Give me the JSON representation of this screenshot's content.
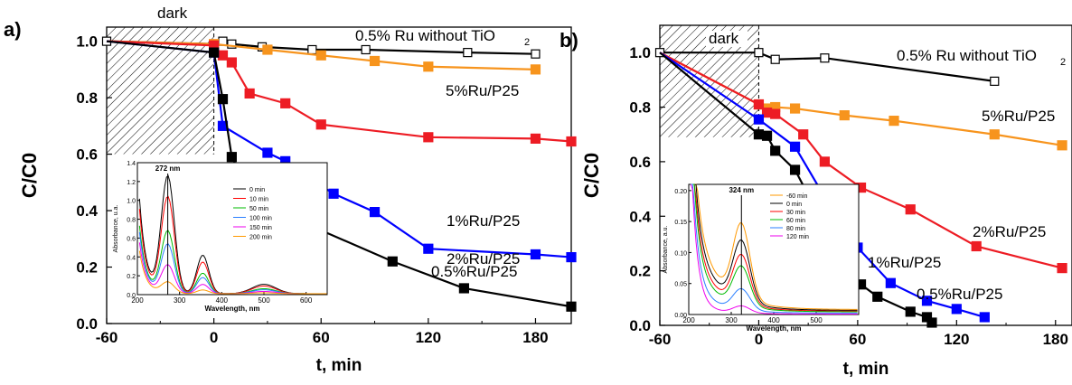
{
  "figure": {
    "panels": [
      {
        "label": "a)"
      },
      {
        "label": "b)"
      }
    ]
  },
  "chart_data": [
    {
      "type": "line",
      "panel": "a)",
      "xlabel": "t, min",
      "ylabel": "C/C0",
      "xlim": [
        -60,
        200
      ],
      "ylim": [
        0.0,
        1.05
      ],
      "xticks": [
        -60,
        0,
        60,
        120,
        180
      ],
      "yticks": [
        0.0,
        0.2,
        0.4,
        0.6,
        0.8,
        1.0
      ],
      "xtick_labels": [
        "-60",
        "0",
        "60",
        "120",
        "180"
      ],
      "ytick_labels": [
        "0.0",
        "0.2",
        "0.4",
        "0.6",
        "0.8",
        "1.0"
      ],
      "shaded_region": {
        "label": "dark",
        "x": [
          -60,
          0
        ]
      },
      "series": [
        {
          "name": "0.5% Ru without TiO2",
          "color": "#000000",
          "marker": "open-square",
          "x": [
            -60,
            0,
            5,
            10,
            27,
            55,
            85,
            142,
            180
          ],
          "y": [
            1.0,
            0.99,
            1.0,
            0.99,
            0.98,
            0.97,
            0.97,
            0.96,
            0.955
          ]
        },
        {
          "name": "5%Ru/P25",
          "color": "#f7941d",
          "marker": "filled-square",
          "x": [
            -60,
            0,
            30,
            60,
            90,
            120,
            180
          ],
          "y": [
            1.0,
            0.99,
            0.97,
            0.95,
            0.93,
            0.91,
            0.9
          ]
        },
        {
          "name": "2%Ru/P25",
          "color": "#ed1c24",
          "marker": "filled-square",
          "x": [
            -60,
            0,
            5,
            10,
            20,
            40,
            60,
            120,
            180,
            200
          ],
          "y": [
            1.0,
            0.985,
            0.95,
            0.925,
            0.815,
            0.78,
            0.705,
            0.66,
            0.655,
            0.645
          ]
        },
        {
          "name": "1%Ru/P25",
          "color": "#0000ff",
          "marker": "filled-square",
          "x": [
            -60,
            0,
            5,
            30,
            40,
            52,
            67,
            90,
            120,
            180,
            200
          ],
          "y": [
            1.0,
            0.96,
            0.7,
            0.605,
            0.575,
            0.52,
            0.46,
            0.395,
            0.265,
            0.245,
            0.235
          ]
        },
        {
          "name": "0.5%Ru/P25",
          "color": "#000000",
          "marker": "filled-square",
          "x": [
            -60,
            0,
            5,
            10,
            15,
            20,
            30,
            40,
            50,
            60,
            100,
            140,
            200
          ],
          "y": [
            1.0,
            0.96,
            0.795,
            0.59,
            0.53,
            0.48,
            0.425,
            0.385,
            0.345,
            0.33,
            0.22,
            0.125,
            0.06
          ]
        }
      ],
      "series_labels": [
        "0.5% Ru without TiO",
        "2",
        "5%Ru/P25",
        "2%Ru/P25",
        "1%Ru/P25",
        "0.5%Ru/P25"
      ],
      "inset": {
        "xlabel": "Wavelength, nm",
        "ylabel": "Absorbance, u.a.",
        "xlim": [
          200,
          650
        ],
        "ylim": [
          0,
          1.4
        ],
        "xticks": [
          "200",
          "300",
          "400",
          "500",
          "600"
        ],
        "yticks": [
          "0.0",
          "0.2",
          "0.4",
          "0.6",
          "0.8",
          "1.0",
          "1.2",
          "1.4"
        ],
        "peak_label": "272 nm",
        "peak_x": 272,
        "legend": [
          "0 min",
          "10 min",
          "50 min",
          "100 min",
          "150 min",
          "200 min"
        ],
        "colors": [
          "#000000",
          "#ff0000",
          "#00bb00",
          "#2a7fff",
          "#ee00ee",
          "#ff9900"
        ],
        "peak_heights": [
          1.24,
          1.02,
          0.66,
          0.52,
          0.3,
          0.12
        ]
      }
    },
    {
      "type": "line",
      "panel": "b)",
      "xlabel": "t, min",
      "ylabel": "C/C0",
      "xlim": [
        -60,
        190
      ],
      "ylim": [
        0.0,
        1.1
      ],
      "xticks": [
        -60,
        0,
        60,
        120,
        180
      ],
      "yticks": [
        0.0,
        0.2,
        0.4,
        0.6,
        0.8,
        1.0
      ],
      "xtick_labels": [
        "-60",
        "0",
        "60",
        "120",
        "180"
      ],
      "ytick_labels": [
        "0.0",
        "0.2",
        "0.4",
        "0.6",
        "0.8",
        "1.0"
      ],
      "shaded_region": {
        "label": "dark",
        "x": [
          -60,
          0
        ]
      },
      "series": [
        {
          "name": "0.5% Ru without TiO2",
          "color": "#000000",
          "marker": "open-square",
          "x": [
            -60,
            0,
            10,
            40,
            143
          ],
          "y": [
            1.0,
            1.0,
            0.975,
            0.98,
            0.895
          ]
        },
        {
          "name": "5%Ru/P25",
          "color": "#f7941d",
          "marker": "filled-square",
          "x": [
            -60,
            0,
            5,
            10,
            22,
            52,
            82,
            143,
            184
          ],
          "y": [
            1.0,
            0.81,
            0.795,
            0.8,
            0.795,
            0.77,
            0.75,
            0.7,
            0.66
          ]
        },
        {
          "name": "2%Ru/P25",
          "color": "#ed1c24",
          "marker": "filled-square",
          "x": [
            -60,
            0,
            5,
            10,
            27,
            40,
            62,
            92,
            132,
            184
          ],
          "y": [
            1.0,
            0.81,
            0.78,
            0.775,
            0.7,
            0.6,
            0.505,
            0.425,
            0.29,
            0.21
          ]
        },
        {
          "name": "1%Ru/P25",
          "color": "#0000ff",
          "marker": "filled-square",
          "x": [
            -60,
            0,
            22,
            40,
            60,
            80,
            102,
            120,
            137
          ],
          "y": [
            1.0,
            0.755,
            0.655,
            0.47,
            0.285,
            0.155,
            0.09,
            0.06,
            0.03
          ]
        },
        {
          "name": "0.5%Ru/P25",
          "color": "#000000",
          "marker": "filled-square",
          "x": [
            -60,
            0,
            5,
            10,
            22,
            32,
            42,
            52,
            62,
            72,
            92,
            102,
            105
          ],
          "y": [
            1.0,
            0.7,
            0.695,
            0.64,
            0.57,
            0.455,
            0.33,
            0.225,
            0.15,
            0.105,
            0.05,
            0.03,
            0.01
          ]
        }
      ],
      "series_labels": [
        "0.5% Ru without TiO",
        "2",
        "5%Ru/P25",
        "2%Ru/P25",
        "1%Ru/P25",
        "0.5%Ru/P25"
      ],
      "inset": {
        "xlabel": "Wavelength, nm",
        "ylabel": "Absorbance, a.u.",
        "xlim": [
          200,
          600
        ],
        "ylim": [
          0,
          0.21
        ],
        "xticks": [
          "200",
          "300",
          "400",
          "500"
        ],
        "yticks": [
          "0.00",
          "0.05",
          "0.10",
          "0.15",
          "0.20"
        ],
        "peak_label": "324 nm",
        "peak_x": 324,
        "legend": [
          "-60 min",
          "0 min",
          "30 min",
          "60 min",
          "80 min",
          "120 min"
        ],
        "colors": [
          "#ff9900",
          "#000000",
          "#ff0000",
          "#00bb00",
          "#2a7fff",
          "#ee00ee"
        ],
        "peak_heights": [
          0.16,
          0.13,
          0.105,
          0.085,
          0.045,
          0.015
        ]
      }
    }
  ],
  "colors": {
    "axis": "#000000",
    "hatch": "#000000"
  }
}
